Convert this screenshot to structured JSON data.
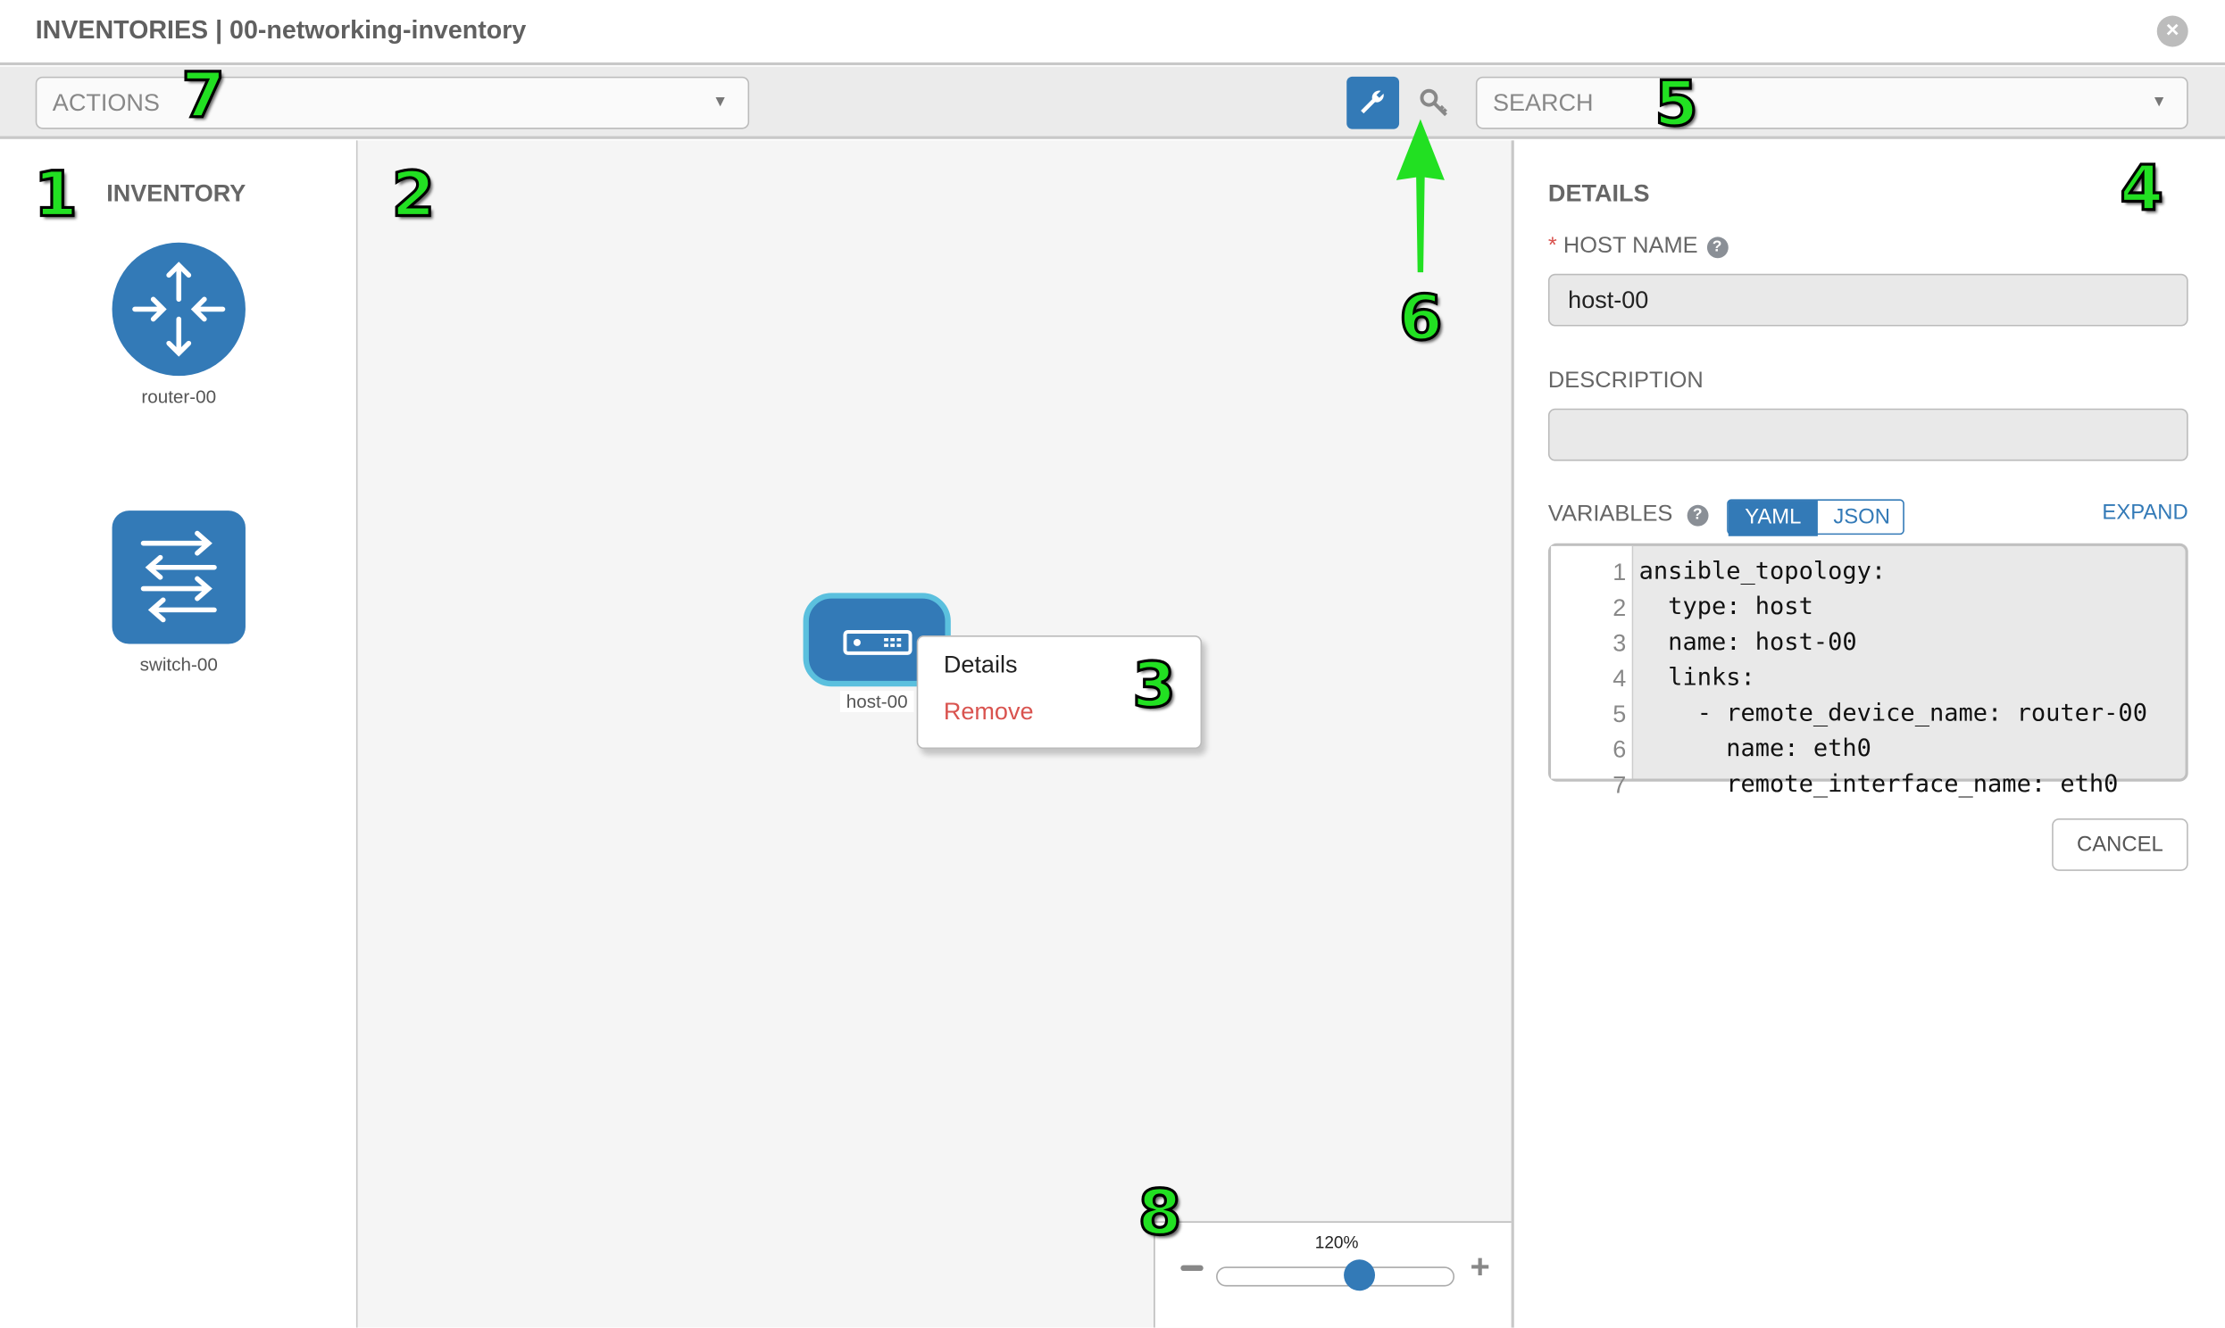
{
  "header": {
    "title": "INVENTORIES | 00-networking-inventory",
    "close_icon": "close-circle-icon"
  },
  "toolbar": {
    "actions_placeholder": "ACTIONS",
    "search_placeholder": "SEARCH",
    "wrench_icon": "wrench-icon",
    "key_icon": "key-icon",
    "active_color": "#337ab7"
  },
  "inventory": {
    "title": "INVENTORY",
    "items": [
      {
        "label": "router-00",
        "icon": "router-icon"
      },
      {
        "label": "switch-00",
        "icon": "switch-icon"
      }
    ]
  },
  "canvas": {
    "host": {
      "label": "host-00",
      "icon": "host-icon"
    },
    "context_menu": {
      "details": "Details",
      "remove": "Remove"
    },
    "zoom": {
      "value": "120%",
      "percent": 120,
      "minus": "−",
      "plus": "+"
    }
  },
  "details": {
    "title": "DETAILS",
    "required_mark": "*",
    "host_name_label": "HOST NAME",
    "host_name_value": "host-00",
    "description_label": "DESCRIPTION",
    "description_value": "",
    "variables_label": "VARIABLES",
    "yaml": "YAML",
    "json": "JSON",
    "expand": "EXPAND",
    "cancel": "CANCEL",
    "code": [
      "ansible_topology:",
      "  type: host",
      "  name: host-00",
      "  links:",
      "    - remote_device_name: router-00",
      "      name: eth0",
      "      remote_interface_name: eth0"
    ]
  },
  "annotations": [
    "1",
    "2",
    "3",
    "4",
    "5",
    "6",
    "7",
    "8"
  ],
  "colors": {
    "primary": "#337ab7",
    "node_selected_border": "#5bc0de",
    "danger": "#d9534f",
    "annotation": "#22e022"
  }
}
